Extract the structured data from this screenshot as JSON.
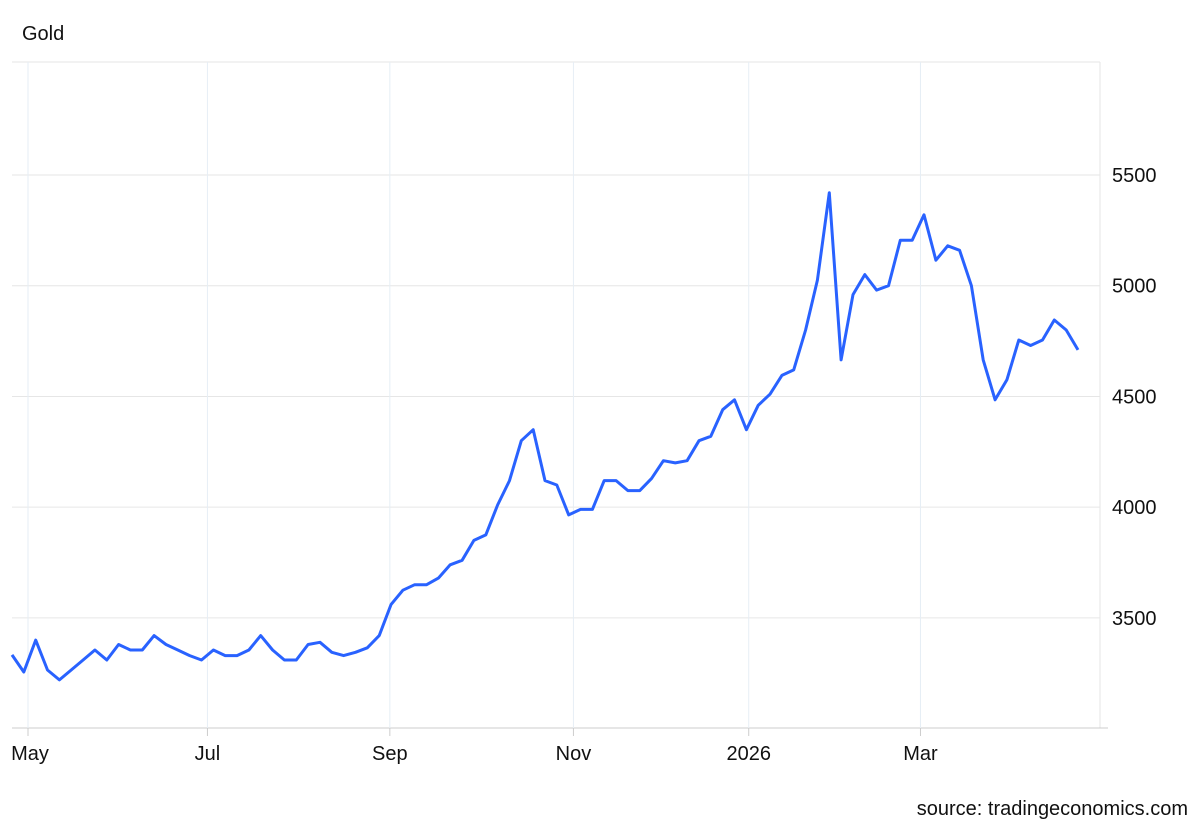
{
  "chart_data": {
    "type": "line",
    "title": "Gold",
    "source": "source: tradingeconomics.com",
    "series": [
      {
        "name": "Gold",
        "color": "#2962ff",
        "values": [
          3333,
          3256,
          3400,
          3265,
          3220,
          3265,
          3310,
          3355,
          3310,
          3380,
          3355,
          3355,
          3420,
          3380,
          3355,
          3330,
          3310,
          3355,
          3330,
          3330,
          3355,
          3420,
          3355,
          3310,
          3310,
          3380,
          3390,
          3345,
          3330,
          3345,
          3365,
          3420,
          3560,
          3625,
          3650,
          3650,
          3680,
          3740,
          3760,
          3850,
          3875,
          4010,
          4120,
          4300,
          4350,
          4120,
          4100,
          3965,
          3990,
          3990,
          4120,
          4120,
          4075,
          4075,
          4130,
          4210,
          4200,
          4210,
          4300,
          4320,
          4440,
          4485,
          4350,
          4460,
          4510,
          4595,
          4620,
          4800,
          5025,
          5420,
          4665,
          4960,
          5050,
          4980,
          5000,
          5205,
          5205,
          5320,
          5115,
          5180,
          5160,
          5000,
          4665,
          4485,
          4575,
          4755,
          4730,
          4755,
          4845,
          4800,
          4710
        ]
      }
    ],
    "xlim": [
      0,
      90
    ],
    "xticks": [
      {
        "value": 1.35,
        "label": "May"
      },
      {
        "value": 16.5,
        "label": "Jul"
      },
      {
        "value": 31.9,
        "label": "Sep"
      },
      {
        "value": 47.4,
        "label": "Nov"
      },
      {
        "value": 62.2,
        "label": "2026"
      },
      {
        "value": 76.7,
        "label": "Mar"
      }
    ],
    "ylim": [
      3003,
      6010
    ],
    "yticks": [
      3500,
      4000,
      4500,
      5000,
      5500
    ],
    "grid": true
  }
}
